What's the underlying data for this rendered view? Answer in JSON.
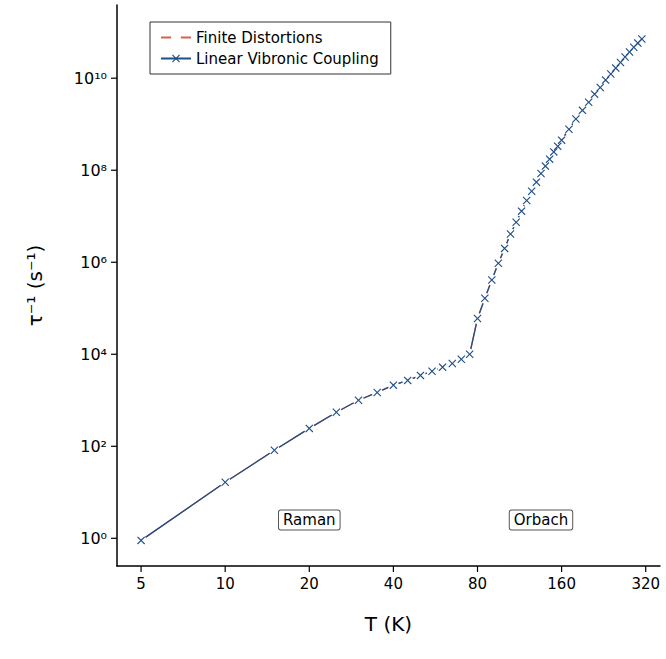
{
  "chart_data": {
    "type": "line",
    "x_label": "T (K)",
    "y_label": "τ⁻¹ (s⁻¹)",
    "log": true,
    "grid": false,
    "legend": "upper left",
    "xlim": [
      4.1,
      360
    ],
    "ylim": [
      0.25,
      390000000000.0
    ],
    "xticks": [
      5,
      10,
      20,
      40,
      80,
      160,
      320
    ],
    "yticks": [
      {
        "value": 1,
        "label": "10⁰"
      },
      {
        "value": 100,
        "label": "10²"
      },
      {
        "value": 10000,
        "label": "10⁴"
      },
      {
        "value": 1000000,
        "label": "10⁶"
      },
      {
        "value": 100000000,
        "label": "10⁸"
      },
      {
        "value": 10000000000,
        "label": "10¹⁰"
      }
    ],
    "x": [
      5,
      10,
      15,
      20,
      25,
      30,
      35,
      40,
      45,
      50,
      55,
      60,
      65,
      70,
      75,
      80,
      85,
      90,
      95,
      100,
      105,
      110,
      115,
      120,
      125,
      130,
      135,
      140,
      145,
      150,
      155,
      160,
      170,
      180,
      190,
      200,
      210,
      220,
      230,
      240,
      250,
      260,
      270,
      280,
      290,
      300,
      310
    ],
    "series": [
      {
        "name": "Finite Distortions",
        "color": "#d6604d",
        "marker": "circle",
        "line_style": "solid",
        "values": [
          0.9,
          16.5,
          82,
          245,
          550,
          1000,
          1480,
          2130,
          2700,
          3470,
          4270,
          5250,
          6300,
          7800,
          10000,
          60000,
          165000,
          410000,
          950000,
          2000000,
          4100000,
          7400000,
          12900000,
          22000000,
          35000000,
          55000000,
          85000000,
          123000000,
          174000000,
          250000000,
          330000000,
          450000000,
          780000000,
          1300000000,
          2000000000,
          3000000000,
          4500000000,
          6300000000,
          9100000000,
          12300000000,
          16600000000,
          22000000000,
          29000000000,
          37000000000,
          47000000000,
          58000000000,
          71000000000
        ]
      },
      {
        "name": "Linear Vibronic Coupling",
        "color": "#1f4e89",
        "marker": "x",
        "line_style": "solid",
        "values": [
          0.9,
          16.5,
          82,
          245,
          550,
          1000,
          1480,
          2130,
          2700,
          3470,
          4270,
          5250,
          6300,
          7800,
          10000,
          60000,
          165000,
          410000,
          950000,
          2000000,
          4100000,
          7400000,
          12900000,
          22000000,
          35000000,
          55000000,
          85000000,
          123000000,
          174000000,
          250000000,
          330000000,
          450000000,
          780000000,
          1300000000,
          2000000000,
          3000000000,
          4500000000,
          6300000000,
          9100000000,
          12300000000,
          16600000000,
          22000000000,
          29000000000,
          37000000000,
          47000000000,
          58000000000,
          71000000000
        ]
      }
    ],
    "annotations": [
      {
        "text": "Raman",
        "x": 20,
        "y": 2.5
      },
      {
        "text": "Orbach",
        "x": 135,
        "y": 2.5
      }
    ]
  }
}
